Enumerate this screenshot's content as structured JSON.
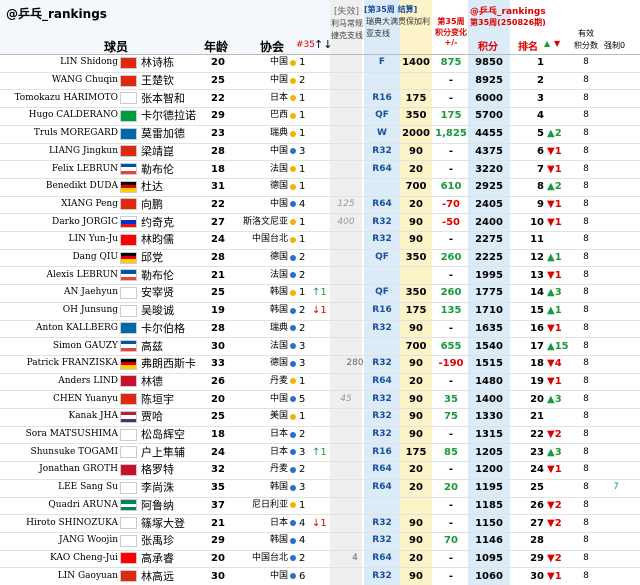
{
  "header": {
    "handle": "@乒乓_rankings",
    "player": "球员",
    "age": "年龄",
    "assoc": "协会",
    "week": "#35",
    "arrows": "↑↓",
    "failed": "[失效]",
    "lima": "利马常规",
    "czech": "捷克支线",
    "settle": "[第35周 结算]",
    "events": "瑞典大满贯保加利亚支线",
    "change": [
      "第35周",
      "积分变化",
      "+/-"
    ],
    "handle2": "@乒乓_rankings",
    "period": "第35周(250826期)",
    "points": "积分",
    "rank": "排名",
    "up": "▲",
    "down": "▼",
    "valid": [
      "有效",
      "积分数"
    ],
    "force": "强制0"
  },
  "flag_colors": {
    "中国": [
      "#de2910"
    ],
    "日本": [
      "#ffffff"
    ],
    "巴西": [
      "#009c3b"
    ],
    "瑞典": [
      "#006aa7"
    ],
    "法国": [
      "#0055a4",
      "#ffffff",
      "#ef4135"
    ],
    "德国": [
      "#000000",
      "#dd0000",
      "#ffce00"
    ],
    "斯洛文尼亚": [
      "#ffffff",
      "#0033cc",
      "#ee1111"
    ],
    "中国台北": [
      "#fe0000"
    ],
    "韩国": [
      "#ffffff"
    ],
    "丹麦": [
      "#c8102e"
    ],
    "美国": [
      "#b22234",
      "#ffffff",
      "#3c3b6e"
    ],
    "尼日利亚": [
      "#008751",
      "#ffffff",
      "#008751"
    ]
  },
  "rows": [
    {
      "en": "LIN Shidong",
      "cn": "林诗栋",
      "age": 20,
      "assoc": "中国",
      "dot": "#f0b400",
      "count": 1,
      "round": "F",
      "pts": 1400,
      "change": "875",
      "total": 9850,
      "rank": 1,
      "valid": 8
    },
    {
      "en": "WANG Chuqin",
      "cn": "王楚钦",
      "age": 25,
      "assoc": "中国",
      "dot": "#f0b400",
      "count": 2,
      "change": "-",
      "total": 8925,
      "rank": 2,
      "valid": 8
    },
    {
      "en": "Tomokazu HARIMOTO",
      "cn": "张本智和",
      "age": 22,
      "assoc": "日本",
      "dot": "#f0b400",
      "count": 1,
      "round": "R16",
      "pts": 175,
      "change": "-",
      "total": 6000,
      "rank": 3,
      "valid": 8
    },
    {
      "en": "Hugo CALDERANO",
      "cn": "卡尔德拉诺",
      "age": 29,
      "assoc": "巴西",
      "dot": "#f0b400",
      "count": 1,
      "round": "QF",
      "pts": 350,
      "change": "175",
      "total": 5700,
      "rank": 4,
      "valid": 8
    },
    {
      "en": "Truls MOREGARD",
      "cn": "莫雷加德",
      "age": 23,
      "assoc": "瑞典",
      "dot": "#f0b400",
      "count": 1,
      "round": "W",
      "pts": 2000,
      "change": "1,825",
      "total": 4455,
      "rank": 5,
      "rank_move": "▲2",
      "valid": 8
    },
    {
      "en": "LIANG Jingkun",
      "cn": "梁靖崑",
      "age": 28,
      "assoc": "中国",
      "dot": "#2a6fc9",
      "count": 3,
      "round": "R32",
      "pts": 90,
      "change": "-",
      "total": 4375,
      "rank": 6,
      "rank_move": "▼1",
      "valid": 8
    },
    {
      "en": "Felix LEBRUN",
      "cn": "勒布伦",
      "age": 18,
      "assoc": "法国",
      "dot": "#f0b400",
      "count": 1,
      "round": "R64",
      "pts": 20,
      "change": "-",
      "total": 3220,
      "rank": 7,
      "rank_move": "▼1",
      "valid": 8
    },
    {
      "en": "Benedikt DUDA",
      "cn": "杜达",
      "age": 31,
      "assoc": "德国",
      "dot": "#f0b400",
      "count": 1,
      "pts": 700,
      "change": "610",
      "total": 2925,
      "rank": 8,
      "rank_move": "▲2",
      "valid": 8
    },
    {
      "en": "XIANG Peng",
      "cn": "向鹏",
      "age": 22,
      "assoc": "中国",
      "dot": "#2a6fc9",
      "count": 4,
      "lima": "125",
      "round": "R64",
      "pts": 20,
      "change": "-70",
      "total": 2405,
      "rank": 9,
      "rank_move": "▼1",
      "valid": 8
    },
    {
      "en": "Darko JORGIC",
      "cn": "约奇克",
      "age": 27,
      "assoc": "斯洛文尼亚",
      "dot": "#f0b400",
      "count": 1,
      "lima": "400",
      "round": "R32",
      "pts": 90,
      "change": "-50",
      "total": 2400,
      "rank": 10,
      "rank_move": "▼1",
      "valid": 8
    },
    {
      "en": "LIN Yun-Ju",
      "cn": "林昀儒",
      "age": 24,
      "assoc": "中国台北",
      "dot": "#f0b400",
      "count": 1,
      "round": "R32",
      "pts": 90,
      "change": "-",
      "total": 2275,
      "rank": 11,
      "valid": 8
    },
    {
      "en": "Dang QIU",
      "cn": "邱党",
      "age": 28,
      "assoc": "德国",
      "dot": "#2a6fc9",
      "count": 2,
      "round": "QF",
      "pts": 350,
      "change": "260",
      "total": 2225,
      "rank": 12,
      "rank_move": "▲1",
      "valid": 8
    },
    {
      "en": "Alexis LEBRUN",
      "cn": "勒布伦",
      "age": 21,
      "assoc": "法国",
      "dot": "#2a6fc9",
      "count": 2,
      "change": "-",
      "total": 1995,
      "rank": 13,
      "rank_move": "▼1",
      "valid": 8
    },
    {
      "en": "AN Jaehyun",
      "cn": "安宰贤",
      "age": 25,
      "assoc": "韩国",
      "dot": "#f0b400",
      "count": 1,
      "move": "↑1",
      "round": "QF",
      "pts": 350,
      "change": "260",
      "total": 1775,
      "rank": 14,
      "rank_move": "▲3",
      "valid": 8
    },
    {
      "en": "OH Junsung",
      "cn": "吴晙诚",
      "age": 19,
      "assoc": "韩国",
      "dot": "#2a6fc9",
      "count": 2,
      "move": "↓1",
      "round": "R16",
      "pts": 175,
      "change": "135",
      "total": 1710,
      "rank": 15,
      "rank_move": "▲1",
      "valid": 8
    },
    {
      "en": "Anton KALLBERG",
      "cn": "卡尔伯格",
      "age": 28,
      "assoc": "瑞典",
      "dot": "#2a6fc9",
      "count": 2,
      "round": "R32",
      "pts": 90,
      "change": "-",
      "total": 1635,
      "rank": 16,
      "rank_move": "▼1",
      "valid": 8
    },
    {
      "en": "Simon GAUZY",
      "cn": "高兹",
      "age": 30,
      "assoc": "法国",
      "dot": "#2a6fc9",
      "count": 3,
      "pts": 700,
      "change": "655",
      "total": 1540,
      "rank": 17,
      "rank_move": "▲15",
      "valid": 8
    },
    {
      "en": "Patrick FRANZISKA",
      "cn": "弗朗西斯卡",
      "age": 33,
      "assoc": "德国",
      "dot": "#2a6fc9",
      "count": 3,
      "czech": "280",
      "round": "R32",
      "pts": 90,
      "change": "-190",
      "total": 1515,
      "rank": 18,
      "rank_move": "▼4",
      "valid": 8
    },
    {
      "en": "Anders LIND",
      "cn": "林德",
      "age": 26,
      "assoc": "丹麦",
      "dot": "#f0b400",
      "count": 1,
      "round": "R64",
      "pts": 20,
      "change": "-",
      "total": 1480,
      "rank": 19,
      "rank_move": "▼1",
      "valid": 8
    },
    {
      "en": "CHEN Yuanyu",
      "cn": "陈垣宇",
      "age": 20,
      "assoc": "中国",
      "dot": "#2a6fc9",
      "count": 5,
      "lima": "45",
      "round": "R32",
      "pts": 90,
      "change": "35",
      "total": 1400,
      "rank": 20,
      "rank_move": "▲3",
      "valid": 8
    },
    {
      "en": "Kanak JHA",
      "cn": "贾哈",
      "age": 25,
      "assoc": "美国",
      "dot": "#f0b400",
      "count": 1,
      "round": "R32",
      "pts": 90,
      "change": "75",
      "total": 1330,
      "rank": 21,
      "valid": 8
    },
    {
      "en": "Sora MATSUSHIMA",
      "cn": "松岛辉空",
      "age": 18,
      "assoc": "日本",
      "dot": "#2a6fc9",
      "count": 2,
      "round": "R32",
      "pts": 90,
      "change": "-",
      "total": 1315,
      "rank": 22,
      "rank_move": "▼2",
      "valid": 8
    },
    {
      "en": "Shunsuke TOGAMI",
      "cn": "户上隼辅",
      "age": 24,
      "assoc": "日本",
      "dot": "#2a6fc9",
      "count": 3,
      "move": "↑1",
      "round": "R16",
      "pts": 175,
      "change": "85",
      "total": 1205,
      "rank": 23,
      "rank_move": "▲3",
      "valid": 8
    },
    {
      "en": "Jonathan GROTH",
      "cn": "格罗特",
      "age": 32,
      "assoc": "丹麦",
      "dot": "#2a6fc9",
      "count": 2,
      "round": "R64",
      "pts": 20,
      "change": "-",
      "total": 1200,
      "rank": 24,
      "rank_move": "▼1",
      "valid": 8
    },
    {
      "en": "LEE Sang Su",
      "cn": "李尚洙",
      "age": 35,
      "assoc": "韩国",
      "dot": "#2a6fc9",
      "count": 3,
      "round": "R64",
      "pts": 20,
      "change": "20",
      "total": 1195,
      "rank": 25,
      "valid": 8,
      "force0": 7
    },
    {
      "en": "Quadri ARUNA",
      "cn": "阿鲁纳",
      "age": 37,
      "assoc": "尼日利亚",
      "dot": "#f0b400",
      "count": 1,
      "change": "-",
      "total": 1185,
      "rank": 26,
      "rank_move": "▼2",
      "valid": 8
    },
    {
      "en": "Hiroto SHINOZUKA",
      "cn": "篠塚大登",
      "age": 21,
      "assoc": "日本",
      "dot": "#2a6fc9",
      "count": 4,
      "move": "↓1",
      "round": "R32",
      "pts": 90,
      "change": "-",
      "total": 1150,
      "rank": 27,
      "rank_move": "▼2",
      "valid": 8
    },
    {
      "en": "JANG Woojin",
      "cn": "张禹珍",
      "age": 29,
      "assoc": "韩国",
      "dot": "#2a6fc9",
      "count": 4,
      "round": "R32",
      "pts": 90,
      "change": "70",
      "total": 1146,
      "rank": 28,
      "valid": 8
    },
    {
      "en": "KAO Cheng-Jui",
      "cn": "高承睿",
      "age": 20,
      "assoc": "中国台北",
      "dot": "#2a6fc9",
      "count": 2,
      "czech": "4",
      "round": "R64",
      "pts": 20,
      "change": "-",
      "total": 1095,
      "rank": 29,
      "rank_move": "▼2",
      "valid": 8
    },
    {
      "en": "LIN Gaoyuan",
      "cn": "林高远",
      "age": 30,
      "assoc": "中国",
      "dot": "#2a6fc9",
      "count": 6,
      "round": "R32",
      "pts": 90,
      "change": "-",
      "total": 1060,
      "rank": 30,
      "rank_move": "▼1",
      "valid": 8
    }
  ]
}
